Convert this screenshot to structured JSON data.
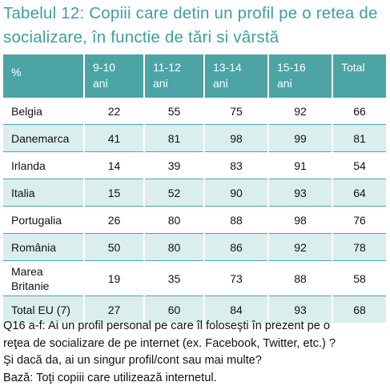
{
  "title": "Tabelul 12: Copiii care detin un profil pe o retea de socializare, în functie de tări si vârstă",
  "table": {
    "header": [
      "%",
      "9-10\nani",
      "11-12\nani",
      "13-14\nani",
      "15-16\nani",
      "Total"
    ],
    "rows": [
      [
        "Belgia",
        22,
        55,
        75,
        92,
        66
      ],
      [
        "Danemarca",
        41,
        81,
        98,
        99,
        81
      ],
      [
        "Irlanda",
        14,
        39,
        83,
        91,
        54
      ],
      [
        "Italia",
        15,
        52,
        90,
        93,
        64
      ],
      [
        "Portugalia",
        26,
        80,
        88,
        98,
        76
      ],
      [
        "România",
        50,
        80,
        86,
        92,
        78
      ],
      [
        "Marea\nBritanie",
        19,
        35,
        73,
        88,
        58
      ],
      [
        "Total EU (7)",
        27,
        60,
        84,
        93,
        68
      ]
    ]
  },
  "footnote": [
    "Q16 a-f: Ai un profil personal pe care îl foloseşti în prezent pe o",
    "reţea de socializare de pe internet (ex. Facebook, Twitter, etc.) ?",
    "Şi dacă da, ai un singur profil/cont sau mai multe?",
    "Bază: Toţi copiii care utilizează internetul."
  ]
}
